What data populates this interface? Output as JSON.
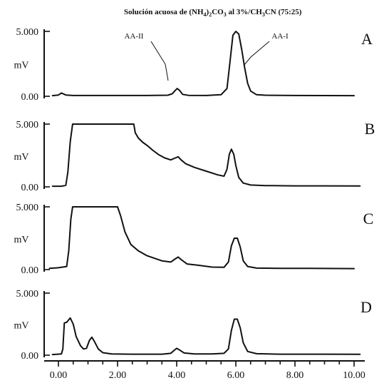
{
  "chart_data": {
    "type": "line",
    "title": {
      "prefix": "Solución acuosa de (NH",
      "sub1": "4",
      "mid1": ")",
      "sub2": "2",
      "mid2": "CO",
      "sub3": "3",
      "mid3": " al 3%/CH",
      "sub4": "3",
      "suffix": "CN (75:25)"
    },
    "x_ticks": [
      "0.00",
      "2.00",
      "4.00",
      "6.00",
      "8.00",
      "10.00"
    ],
    "x_tick_values": [
      0,
      2,
      4,
      6,
      8,
      10
    ],
    "xlim": [
      -0.3,
      10.3
    ],
    "ylim": [
      0,
      5
    ],
    "y_unit": "mV",
    "panels": [
      {
        "letter": "A",
        "y_ticks": [
          "5.000",
          "0.00"
        ],
        "x_range": [
          -0.2,
          10.0
        ],
        "points": [
          [
            -0.2,
            0.05
          ],
          [
            0.0,
            0.1
          ],
          [
            0.1,
            0.25
          ],
          [
            0.25,
            0.1
          ],
          [
            0.5,
            0.06
          ],
          [
            1.0,
            0.06
          ],
          [
            2.0,
            0.06
          ],
          [
            3.0,
            0.06
          ],
          [
            3.7,
            0.08
          ],
          [
            3.85,
            0.2
          ],
          [
            3.95,
            0.45
          ],
          [
            4.02,
            0.6
          ],
          [
            4.1,
            0.45
          ],
          [
            4.2,
            0.15
          ],
          [
            4.4,
            0.07
          ],
          [
            5.0,
            0.06
          ],
          [
            5.5,
            0.12
          ],
          [
            5.7,
            0.6
          ],
          [
            5.8,
            2.6
          ],
          [
            5.9,
            4.7
          ],
          [
            6.0,
            5.0
          ],
          [
            6.1,
            4.8
          ],
          [
            6.2,
            3.6
          ],
          [
            6.3,
            2.2
          ],
          [
            6.4,
            1.0
          ],
          [
            6.5,
            0.4
          ],
          [
            6.7,
            0.12
          ],
          [
            7.0,
            0.08
          ],
          [
            8.0,
            0.06
          ],
          [
            10.0,
            0.05
          ]
        ],
        "peak_labels": [
          {
            "text": "AA-II",
            "x": 4.0
          },
          {
            "text": "AA-I",
            "x": 6.15
          }
        ]
      },
      {
        "letter": "B",
        "y_ticks": [
          "5.000",
          "0.00"
        ],
        "x_range": [
          -0.2,
          10.2
        ],
        "points": [
          [
            -0.2,
            0.05
          ],
          [
            0.1,
            0.05
          ],
          [
            0.25,
            0.12
          ],
          [
            0.32,
            1.2
          ],
          [
            0.4,
            3.6
          ],
          [
            0.48,
            5.0
          ],
          [
            2.55,
            5.0
          ],
          [
            2.6,
            4.3
          ],
          [
            2.7,
            3.9
          ],
          [
            2.85,
            3.55
          ],
          [
            3.0,
            3.3
          ],
          [
            3.2,
            2.9
          ],
          [
            3.4,
            2.55
          ],
          [
            3.6,
            2.3
          ],
          [
            3.8,
            2.15
          ],
          [
            3.95,
            2.3
          ],
          [
            4.05,
            2.4
          ],
          [
            4.15,
            2.15
          ],
          [
            4.3,
            1.85
          ],
          [
            4.6,
            1.55
          ],
          [
            5.0,
            1.25
          ],
          [
            5.4,
            0.95
          ],
          [
            5.6,
            0.85
          ],
          [
            5.7,
            1.4
          ],
          [
            5.78,
            2.6
          ],
          [
            5.85,
            3.0
          ],
          [
            5.93,
            2.6
          ],
          [
            6.0,
            1.7
          ],
          [
            6.1,
            0.75
          ],
          [
            6.25,
            0.3
          ],
          [
            6.5,
            0.15
          ],
          [
            7.0,
            0.1
          ],
          [
            8.0,
            0.08
          ],
          [
            9.0,
            0.08
          ],
          [
            10.2,
            0.07
          ]
        ]
      },
      {
        "letter": "C",
        "y_ticks": [
          "5.000",
          "0.00"
        ],
        "x_range": [
          -0.3,
          10.0
        ],
        "points": [
          [
            -0.3,
            0.1
          ],
          [
            0.0,
            0.15
          ],
          [
            0.28,
            0.25
          ],
          [
            0.35,
            1.5
          ],
          [
            0.42,
            4.0
          ],
          [
            0.48,
            5.0
          ],
          [
            2.0,
            5.0
          ],
          [
            2.1,
            4.3
          ],
          [
            2.25,
            3.0
          ],
          [
            2.45,
            2.0
          ],
          [
            2.7,
            1.5
          ],
          [
            3.0,
            1.1
          ],
          [
            3.5,
            0.7
          ],
          [
            3.8,
            0.6
          ],
          [
            3.95,
            0.85
          ],
          [
            4.05,
            1.0
          ],
          [
            4.15,
            0.8
          ],
          [
            4.35,
            0.45
          ],
          [
            4.7,
            0.35
          ],
          [
            5.2,
            0.2
          ],
          [
            5.6,
            0.18
          ],
          [
            5.75,
            0.6
          ],
          [
            5.85,
            1.9
          ],
          [
            5.95,
            2.5
          ],
          [
            6.05,
            2.5
          ],
          [
            6.15,
            1.8
          ],
          [
            6.25,
            0.7
          ],
          [
            6.4,
            0.25
          ],
          [
            6.7,
            0.12
          ],
          [
            7.5,
            0.1
          ],
          [
            8.5,
            0.1
          ],
          [
            10.0,
            0.08
          ]
        ]
      },
      {
        "letter": "D",
        "y_ticks": [
          "5.000",
          "0.00"
        ],
        "x_range": [
          -0.2,
          10.2
        ],
        "points": [
          [
            -0.2,
            0.05
          ],
          [
            0.1,
            0.1
          ],
          [
            0.15,
            0.5
          ],
          [
            0.2,
            2.6
          ],
          [
            0.28,
            2.65
          ],
          [
            0.4,
            3.0
          ],
          [
            0.5,
            2.5
          ],
          [
            0.6,
            1.5
          ],
          [
            0.75,
            0.75
          ],
          [
            0.85,
            0.5
          ],
          [
            0.95,
            0.55
          ],
          [
            1.05,
            1.2
          ],
          [
            1.13,
            1.45
          ],
          [
            1.22,
            1.1
          ],
          [
            1.35,
            0.5
          ],
          [
            1.5,
            0.2
          ],
          [
            1.8,
            0.1
          ],
          [
            2.5,
            0.08
          ],
          [
            3.5,
            0.08
          ],
          [
            3.8,
            0.15
          ],
          [
            3.92,
            0.4
          ],
          [
            4.0,
            0.55
          ],
          [
            4.08,
            0.45
          ],
          [
            4.25,
            0.18
          ],
          [
            4.6,
            0.1
          ],
          [
            5.2,
            0.1
          ],
          [
            5.6,
            0.15
          ],
          [
            5.75,
            0.5
          ],
          [
            5.85,
            2.0
          ],
          [
            5.95,
            2.9
          ],
          [
            6.05,
            2.9
          ],
          [
            6.15,
            2.2
          ],
          [
            6.25,
            1.0
          ],
          [
            6.4,
            0.3
          ],
          [
            6.7,
            0.12
          ],
          [
            7.5,
            0.08
          ],
          [
            9.0,
            0.08
          ],
          [
            10.2,
            0.07
          ]
        ]
      }
    ]
  }
}
